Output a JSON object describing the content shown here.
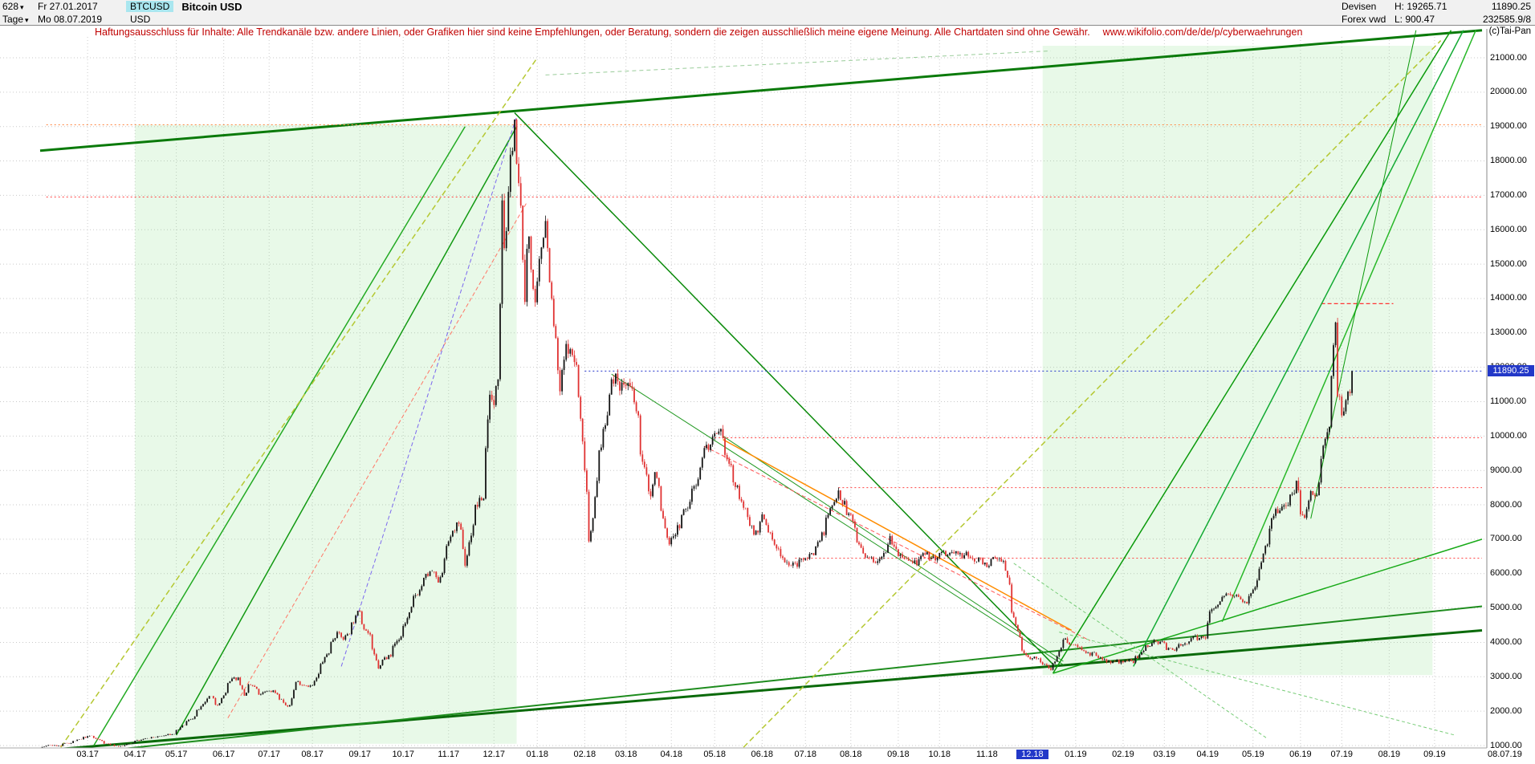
{
  "icons": {
    "chevron_down": "▾"
  },
  "header": {
    "bars_count": "628",
    "start_date": "Fr 27.01.2017",
    "symbol": "BTCUSD",
    "title": "Bitcoin USD",
    "period": "Tage",
    "end_date": "Mo 08.07.2019",
    "currency": "USD",
    "market": "Devisen",
    "provider": "Forex vwd",
    "high_label": "H:",
    "high_value": "19265.71",
    "low_label": "L:",
    "low_value": "900.47",
    "last_price": "11890.25",
    "volume_quote": "232585.9/8",
    "copyright": "(c)Tai-Pan"
  },
  "disclaimer": {
    "text": "Haftungsausschluss für Inhalte: Alle Trendkanäle bzw. andere Linien, oder Grafiken hier sind keine Empfehlungen, oder Beratung, sondern die zeigen ausschließlich meine eigene Meinung. Alle Chartdaten sind ohne Gewähr.",
    "url": "www.wikifolio.com/de/de/p/cyberwaehrungen"
  },
  "price_tag": {
    "value": "11890.25",
    "color": "#2238c8"
  },
  "y_axis": {
    "labels": [
      "21000.00",
      "20000.00",
      "19000.00",
      "18000.00",
      "17000.00",
      "16000.00",
      "15000.00",
      "14000.00",
      "13000.00",
      "12000.00",
      "11000.00",
      "10000.00",
      "9000.00",
      "8000.00",
      "7000.00",
      "6000.00",
      "5000.00",
      "4000.00",
      "3000.00",
      "2000.00",
      "1000.00"
    ]
  },
  "x_axis": {
    "labels": [
      "03.17",
      "04.17",
      "05.17",
      "06.17",
      "07.17",
      "08.17",
      "09.17",
      "10.17",
      "11.17",
      "12.17",
      "01.18",
      "02.18",
      "03.18",
      "04.18",
      "05.18",
      "06.18",
      "07.18",
      "08.18",
      "09.18",
      "10.18",
      "11.18",
      "12.18",
      "01.19",
      "02.19",
      "03.19",
      "04.19",
      "05.19",
      "06.19",
      "07.19",
      "08.19",
      "09.19"
    ],
    "highlighted": "12.18",
    "last_date_label": "08.07.19"
  },
  "chart_data": {
    "type": "candlestick",
    "symbol": "BTCUSD",
    "title": "Bitcoin USD",
    "period_high": 19265.71,
    "period_low": 900.47,
    "last": 11890.25,
    "x_domain": [
      "2017-01-27",
      "2019-10-03"
    ],
    "y_domain": [
      1000,
      21000
    ],
    "up_color": "#141414",
    "down_color": "#e03232",
    "anchors": [
      [
        "2017-01-27",
        921
      ],
      [
        "2017-02-03",
        1010
      ],
      [
        "2017-02-10",
        990
      ],
      [
        "2017-02-24",
        1180
      ],
      [
        "2017-03-03",
        1280
      ],
      [
        "2017-03-10",
        1130
      ],
      [
        "2017-03-18",
        1000
      ],
      [
        "2017-03-25",
        970
      ],
      [
        "2017-04-03",
        1140
      ],
      [
        "2017-04-12",
        1210
      ],
      [
        "2017-04-28",
        1330
      ],
      [
        "2017-05-10",
        1760
      ],
      [
        "2017-05-24",
        2440
      ],
      [
        "2017-05-27",
        2050
      ],
      [
        "2017-06-06",
        2870
      ],
      [
        "2017-06-12",
        2980
      ],
      [
        "2017-06-15",
        2450
      ],
      [
        "2017-06-20",
        2760
      ],
      [
        "2017-06-26",
        2480
      ],
      [
        "2017-07-05",
        2600
      ],
      [
        "2017-07-11",
        2340
      ],
      [
        "2017-07-16",
        1930
      ],
      [
        "2017-07-20",
        2850
      ],
      [
        "2017-08-01",
        2750
      ],
      [
        "2017-08-08",
        3420
      ],
      [
        "2017-08-17",
        4300
      ],
      [
        "2017-08-22",
        4080
      ],
      [
        "2017-09-01",
        4900
      ],
      [
        "2017-09-08",
        4230
      ],
      [
        "2017-09-14",
        3240
      ],
      [
        "2017-09-21",
        3630
      ],
      [
        "2017-09-29",
        4170
      ],
      [
        "2017-10-13",
        5640
      ],
      [
        "2017-10-21",
        6080
      ],
      [
        "2017-10-25",
        5740
      ],
      [
        "2017-11-02",
        7080
      ],
      [
        "2017-11-08",
        7450
      ],
      [
        "2017-11-12",
        5950
      ],
      [
        "2017-11-18",
        7800
      ],
      [
        "2017-11-25",
        8250
      ],
      [
        "2017-11-29",
        11200
      ],
      [
        "2017-12-01",
        10900
      ],
      [
        "2017-12-05",
        11650
      ],
      [
        "2017-12-07",
        16850
      ],
      [
        "2017-12-09",
        14700
      ],
      [
        "2017-12-12",
        17100
      ],
      [
        "2017-12-15",
        19200
      ],
      [
        "2017-12-20",
        16700
      ],
      [
        "2017-12-22",
        13900
      ],
      [
        "2017-12-26",
        15800
      ],
      [
        "2017-12-30",
        12900
      ],
      [
        "2018-01-06",
        17150
      ],
      [
        "2018-01-11",
        13200
      ],
      [
        "2018-01-16",
        11300
      ],
      [
        "2018-01-20",
        12800
      ],
      [
        "2018-01-28",
        11800
      ],
      [
        "2018-02-01",
        9000
      ],
      [
        "2018-02-05",
        6940
      ],
      [
        "2018-02-09",
        8700
      ],
      [
        "2018-02-20",
        11650
      ],
      [
        "2018-03-05",
        11450
      ],
      [
        "2018-03-18",
        7900
      ],
      [
        "2018-03-21",
        8950
      ],
      [
        "2018-03-30",
        6850
      ],
      [
        "2018-04-12",
        7890
      ],
      [
        "2018-04-24",
        9650
      ],
      [
        "2018-05-05",
        9850
      ],
      [
        "2018-05-18",
        8100
      ],
      [
        "2018-05-28",
        7130
      ],
      [
        "2018-06-02",
        7680
      ],
      [
        "2018-06-10",
        6790
      ],
      [
        "2018-06-24",
        6170
      ],
      [
        "2018-06-29",
        6400
      ],
      [
        "2018-07-08",
        6720
      ],
      [
        "2018-07-24",
        8420
      ],
      [
        "2018-07-31",
        7750
      ],
      [
        "2018-08-11",
        6250
      ],
      [
        "2018-08-19",
        6500
      ],
      [
        "2018-08-28",
        7090
      ],
      [
        "2018-09-05",
        6470
      ],
      [
        "2018-09-12",
        6310
      ],
      [
        "2018-09-25",
        6450
      ],
      [
        "2018-10-10",
        6590
      ],
      [
        "2018-10-31",
        6320
      ],
      [
        "2018-11-13",
        6370
      ],
      [
        "2018-11-19",
        4870
      ],
      [
        "2018-11-25",
        3780
      ],
      [
        "2018-12-07",
        3420
      ],
      [
        "2018-12-15",
        3220
      ],
      [
        "2018-12-24",
        4080
      ],
      [
        "2019-01-06",
        3840
      ],
      [
        "2019-01-10",
        3620
      ],
      [
        "2019-01-28",
        3440
      ],
      [
        "2019-02-08",
        3400
      ],
      [
        "2019-02-24",
        4150
      ],
      [
        "2019-03-04",
        3780
      ],
      [
        "2019-03-16",
        4030
      ],
      [
        "2019-03-30",
        4100
      ],
      [
        "2019-04-02",
        4900
      ],
      [
        "2019-04-10",
        5320
      ],
      [
        "2019-04-25",
        5180
      ],
      [
        "2019-05-03",
        5800
      ],
      [
        "2019-05-11",
        7200
      ],
      [
        "2019-05-16",
        7880
      ],
      [
        "2019-05-21",
        7950
      ],
      [
        "2019-05-30",
        8700
      ],
      [
        "2019-06-04",
        7700
      ],
      [
        "2019-06-14",
        8650
      ],
      [
        "2019-06-22",
        10700
      ],
      [
        "2019-06-26",
        13300
      ],
      [
        "2019-06-27",
        11160
      ],
      [
        "2019-07-01",
        10600
      ],
      [
        "2019-07-05",
        11250
      ],
      [
        "2019-07-08",
        11890.25
      ]
    ],
    "regions": [
      {
        "x1": "2017-04-03",
        "x2": "2017-12-18",
        "p1": 1050,
        "p2": 19050,
        "f": "rgba(140,225,140,0.20)"
      },
      {
        "x1": "2018-12-10",
        "x2": "2019-08-30",
        "p1": 3050,
        "p2": 21350,
        "f": "rgba(140,225,140,0.20)"
      }
    ],
    "lines": [
      {
        "x1": "2017-01-27",
        "p1": 18300,
        "x2": "2019-10-03",
        "p2": 21800,
        "c": "#0a7a0a",
        "w": 3,
        "d": ""
      },
      {
        "x1": "2017-01-27",
        "p1": 850,
        "x2": "2019-10-03",
        "p2": 4350,
        "c": "#0a6a0a",
        "w": 3,
        "d": ""
      },
      {
        "x1": "2017-03-20",
        "p1": 880,
        "x2": "2019-10-03",
        "p2": 5050,
        "c": "#1e8c1e",
        "w": 2,
        "d": ""
      },
      {
        "x1": "2017-05-01",
        "p1": 1300,
        "x2": "2017-12-18",
        "p2": 19000,
        "c": "#119911",
        "w": 1.5,
        "d": ""
      },
      {
        "x1": "2017-03-05",
        "p1": 1000,
        "x2": "2017-11-12",
        "p2": 19000,
        "c": "#22aa22",
        "w": 1.5,
        "d": ""
      },
      {
        "x1": "2017-06-05",
        "p1": 1800,
        "x2": "2017-12-24",
        "p2": 16800,
        "c": "#ff7766",
        "w": 1,
        "d": "5 3"
      },
      {
        "x1": "2017-08-20",
        "p1": 3300,
        "x2": "2017-12-16",
        "p2": 19300,
        "c": "#7b68ee",
        "w": 1,
        "d": "5 3"
      },
      {
        "x1": "2017-12-15",
        "p1": 19400,
        "x2": "2018-12-18",
        "p2": 3300,
        "c": "#0a8a0a",
        "w": 1.5,
        "d": ""
      },
      {
        "x1": "2018-02-20",
        "p1": 11800,
        "x2": "2018-12-24",
        "p2": 3350,
        "c": "#229922",
        "w": 1,
        "d": ""
      },
      {
        "x1": "2018-05-05",
        "p1": 10000,
        "x2": "2018-12-24",
        "p2": 3450,
        "c": "#229922",
        "w": 1,
        "d": ""
      },
      {
        "x1": "2018-05-05",
        "p1": 9900,
        "x2": "2018-12-28",
        "p2": 4350,
        "c": "#ff8c00",
        "w": 1.5,
        "d": ""
      },
      {
        "x1": "2018-04-24",
        "p1": 9700,
        "x2": "2019-01-10",
        "p2": 4050,
        "c": "#ff5555",
        "w": 1,
        "d": "5 3"
      },
      {
        "x1": "2017-02-01",
        "p1": 19050,
        "x2": "2019-10-03",
        "p2": 19050,
        "c": "#ff8844",
        "w": 1,
        "d": "2 3"
      },
      {
        "x1": "2017-02-01",
        "p1": 16950,
        "x2": "2019-10-03",
        "p2": 16950,
        "c": "#ff4444",
        "w": 1,
        "d": "2 3"
      },
      {
        "x1": "2019-06-17",
        "p1": 13850,
        "x2": "2019-08-05",
        "p2": 13850,
        "c": "#ff3333",
        "w": 1.2,
        "d": "5 3"
      },
      {
        "x1": "2018-05-01",
        "p1": 9950,
        "x2": "2019-10-03",
        "p2": 9950,
        "c": "#ff4444",
        "w": 1,
        "d": "2 3"
      },
      {
        "x1": "2018-07-24",
        "p1": 8500,
        "x2": "2019-10-03",
        "p2": 8500,
        "c": "#ff4444",
        "w": 1,
        "d": "2 3"
      },
      {
        "x1": "2018-06-24",
        "p1": 6450,
        "x2": "2019-10-03",
        "p2": 6450,
        "c": "#ff4444",
        "w": 1,
        "d": "2 3"
      },
      {
        "x1": "2018-02-01",
        "p1": 11890,
        "x2": "2019-10-03",
        "p2": 11890,
        "c": "#2233cc",
        "w": 1,
        "d": "2 3"
      },
      {
        "x1": "2017-02-10",
        "p1": 950,
        "x2": "2017-12-30",
        "p2": 21000,
        "c": "#b5c832",
        "w": 1.5,
        "d": "7 4"
      },
      {
        "x1": "2018-05-20",
        "p1": 950,
        "x2": "2019-09-05",
        "p2": 21500,
        "c": "#b5c832",
        "w": 1.5,
        "d": "7 4"
      },
      {
        "x1": "2018-01-05",
        "p1": 20500,
        "x2": "2018-12-14",
        "p2": 21200,
        "c": "#99cc99",
        "w": 1,
        "d": "5 4"
      },
      {
        "x1": "2018-12-15",
        "p1": 3100,
        "x2": "2019-09-12",
        "p2": 21800,
        "c": "#0a9a0a",
        "w": 1.5,
        "d": ""
      },
      {
        "x1": "2019-02-08",
        "p1": 3300,
        "x2": "2019-09-20",
        "p2": 21800,
        "c": "#12aa33",
        "w": 1.5,
        "d": ""
      },
      {
        "x1": "2019-04-10",
        "p1": 4600,
        "x2": "2019-09-28",
        "p2": 21800,
        "c": "#28b828",
        "w": 1.5,
        "d": ""
      },
      {
        "x1": "2019-06-10",
        "p1": 7600,
        "x2": "2019-08-20",
        "p2": 21800,
        "c": "#0a9a0a",
        "w": 1,
        "d": ""
      },
      {
        "x1": "2018-12-15",
        "p1": 3100,
        "x2": "2019-10-03",
        "p2": 7000,
        "c": "#18aa18",
        "w": 1.5,
        "d": ""
      },
      {
        "x1": "2018-12-20",
        "p1": 4300,
        "x2": "2019-09-15",
        "p2": 1300,
        "c": "#77cc77",
        "w": 1,
        "d": "4 3"
      },
      {
        "x1": "2018-11-20",
        "p1": 6300,
        "x2": "2019-05-10",
        "p2": 1200,
        "c": "#77cc77",
        "w": 1,
        "d": "4 3"
      }
    ]
  }
}
